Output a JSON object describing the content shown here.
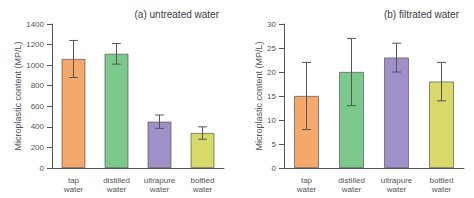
{
  "chart_data": [
    {
      "type": "bar",
      "title": "(a) untreated water",
      "ylabel": "Microplastic content (MP/L)",
      "categories": [
        "tap\nwater",
        "distilled\nwater",
        "ultrapure\nwater",
        "bottled\nwater"
      ],
      "values": [
        1060,
        1110,
        450,
        340
      ],
      "errors": [
        180,
        100,
        65,
        60
      ],
      "colors": [
        "#F4A86C",
        "#7BC98A",
        "#9F90C8",
        "#D9D96A"
      ],
      "ylim": [
        0,
        1400
      ],
      "yticks": [
        0,
        200,
        400,
        600,
        800,
        1000,
        1200,
        1400
      ],
      "grid": false
    },
    {
      "type": "bar",
      "title": "(b) filtrated water",
      "ylabel": "Microplastic content (MP/L)",
      "categories": [
        "tap\nwater",
        "distilled\nwater",
        "ultrapure\nwater",
        "bottled\nwater"
      ],
      "values": [
        15,
        20,
        23,
        18
      ],
      "errors": [
        7,
        7,
        3,
        4
      ],
      "colors": [
        "#F4A86C",
        "#7BC98A",
        "#9F90C8",
        "#D9D96A"
      ],
      "ylim": [
        0,
        30
      ],
      "yticks": [
        0,
        5,
        10,
        15,
        20,
        25,
        30
      ],
      "grid": false
    }
  ]
}
